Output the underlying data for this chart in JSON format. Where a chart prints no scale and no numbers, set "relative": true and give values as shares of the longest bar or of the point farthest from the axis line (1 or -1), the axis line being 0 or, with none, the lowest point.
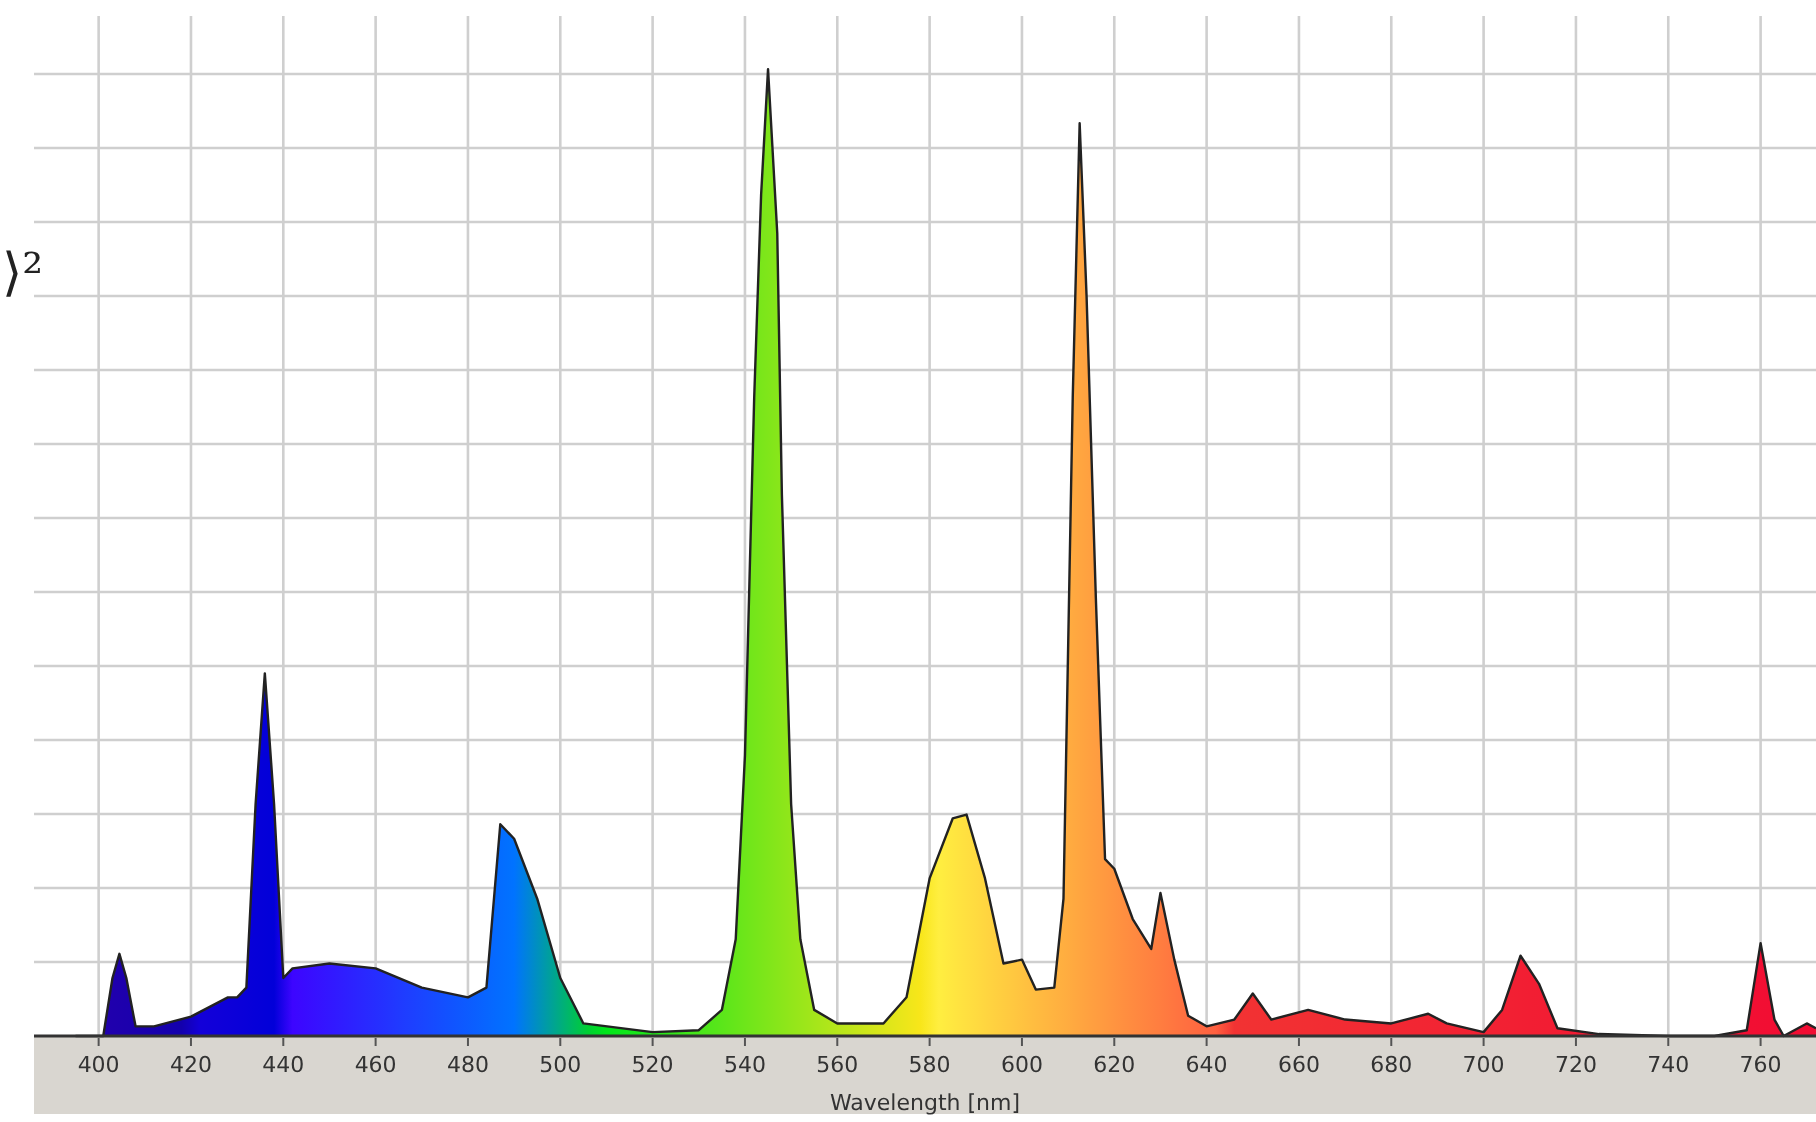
{
  "chart_data": {
    "type": "area",
    "relative": true,
    "xlabel": "Wavelength [nm]",
    "xlim": [
      386,
      772
    ],
    "xticks": [
      400,
      420,
      440,
      460,
      480,
      500,
      520,
      540,
      560,
      580,
      600,
      620,
      640,
      660,
      680,
      700,
      720,
      740,
      760
    ],
    "grid": true,
    "annotations": [
      "⟩²"
    ],
    "x": [
      395,
      401,
      403,
      404.5,
      406,
      408,
      412,
      420,
      428,
      430,
      432,
      434,
      436,
      438,
      440,
      442,
      450,
      460,
      470,
      480,
      484,
      487,
      490,
      495,
      500,
      505,
      520,
      530,
      535,
      538,
      540,
      542,
      543.5,
      545,
      547,
      548,
      550,
      552,
      555,
      560,
      570,
      575,
      580,
      585,
      588,
      592,
      596,
      600,
      603,
      607,
      609,
      611,
      612.5,
      614,
      616,
      618,
      620,
      624,
      628,
      630,
      633,
      636,
      640,
      646,
      650,
      654,
      662,
      670,
      680,
      688,
      692,
      700,
      704,
      708,
      712,
      716,
      725,
      740,
      750,
      757,
      760,
      763,
      765,
      770,
      772
    ],
    "values": [
      0,
      0,
      0.06,
      0.085,
      0.06,
      0.01,
      0.01,
      0.02,
      0.04,
      0.04,
      0.05,
      0.24,
      0.375,
      0.24,
      0.06,
      0.07,
      0.075,
      0.07,
      0.05,
      0.04,
      0.05,
      0.219,
      0.204,
      0.142,
      0.06,
      0.013,
      0.004,
      0.006,
      0.027,
      0.1,
      0.29,
      0.66,
      0.87,
      1,
      0.83,
      0.56,
      0.24,
      0.1,
      0.027,
      0.013,
      0.013,
      0.04,
      0.163,
      0.225,
      0.229,
      0.163,
      0.075,
      0.079,
      0.048,
      0.05,
      0.142,
      0.66,
      0.944,
      0.765,
      0.454,
      0.183,
      0.173,
      0.121,
      0.09,
      0.148,
      0.079,
      0.021,
      0.01,
      0.017,
      0.044,
      0.017,
      0.027,
      0.017,
      0.013,
      0.023,
      0.013,
      0.004,
      0.027,
      0.083,
      0.054,
      0.008,
      0.002,
      0,
      0,
      0.006,
      0.096,
      0.017,
      0,
      0.013,
      0.008
    ]
  }
}
